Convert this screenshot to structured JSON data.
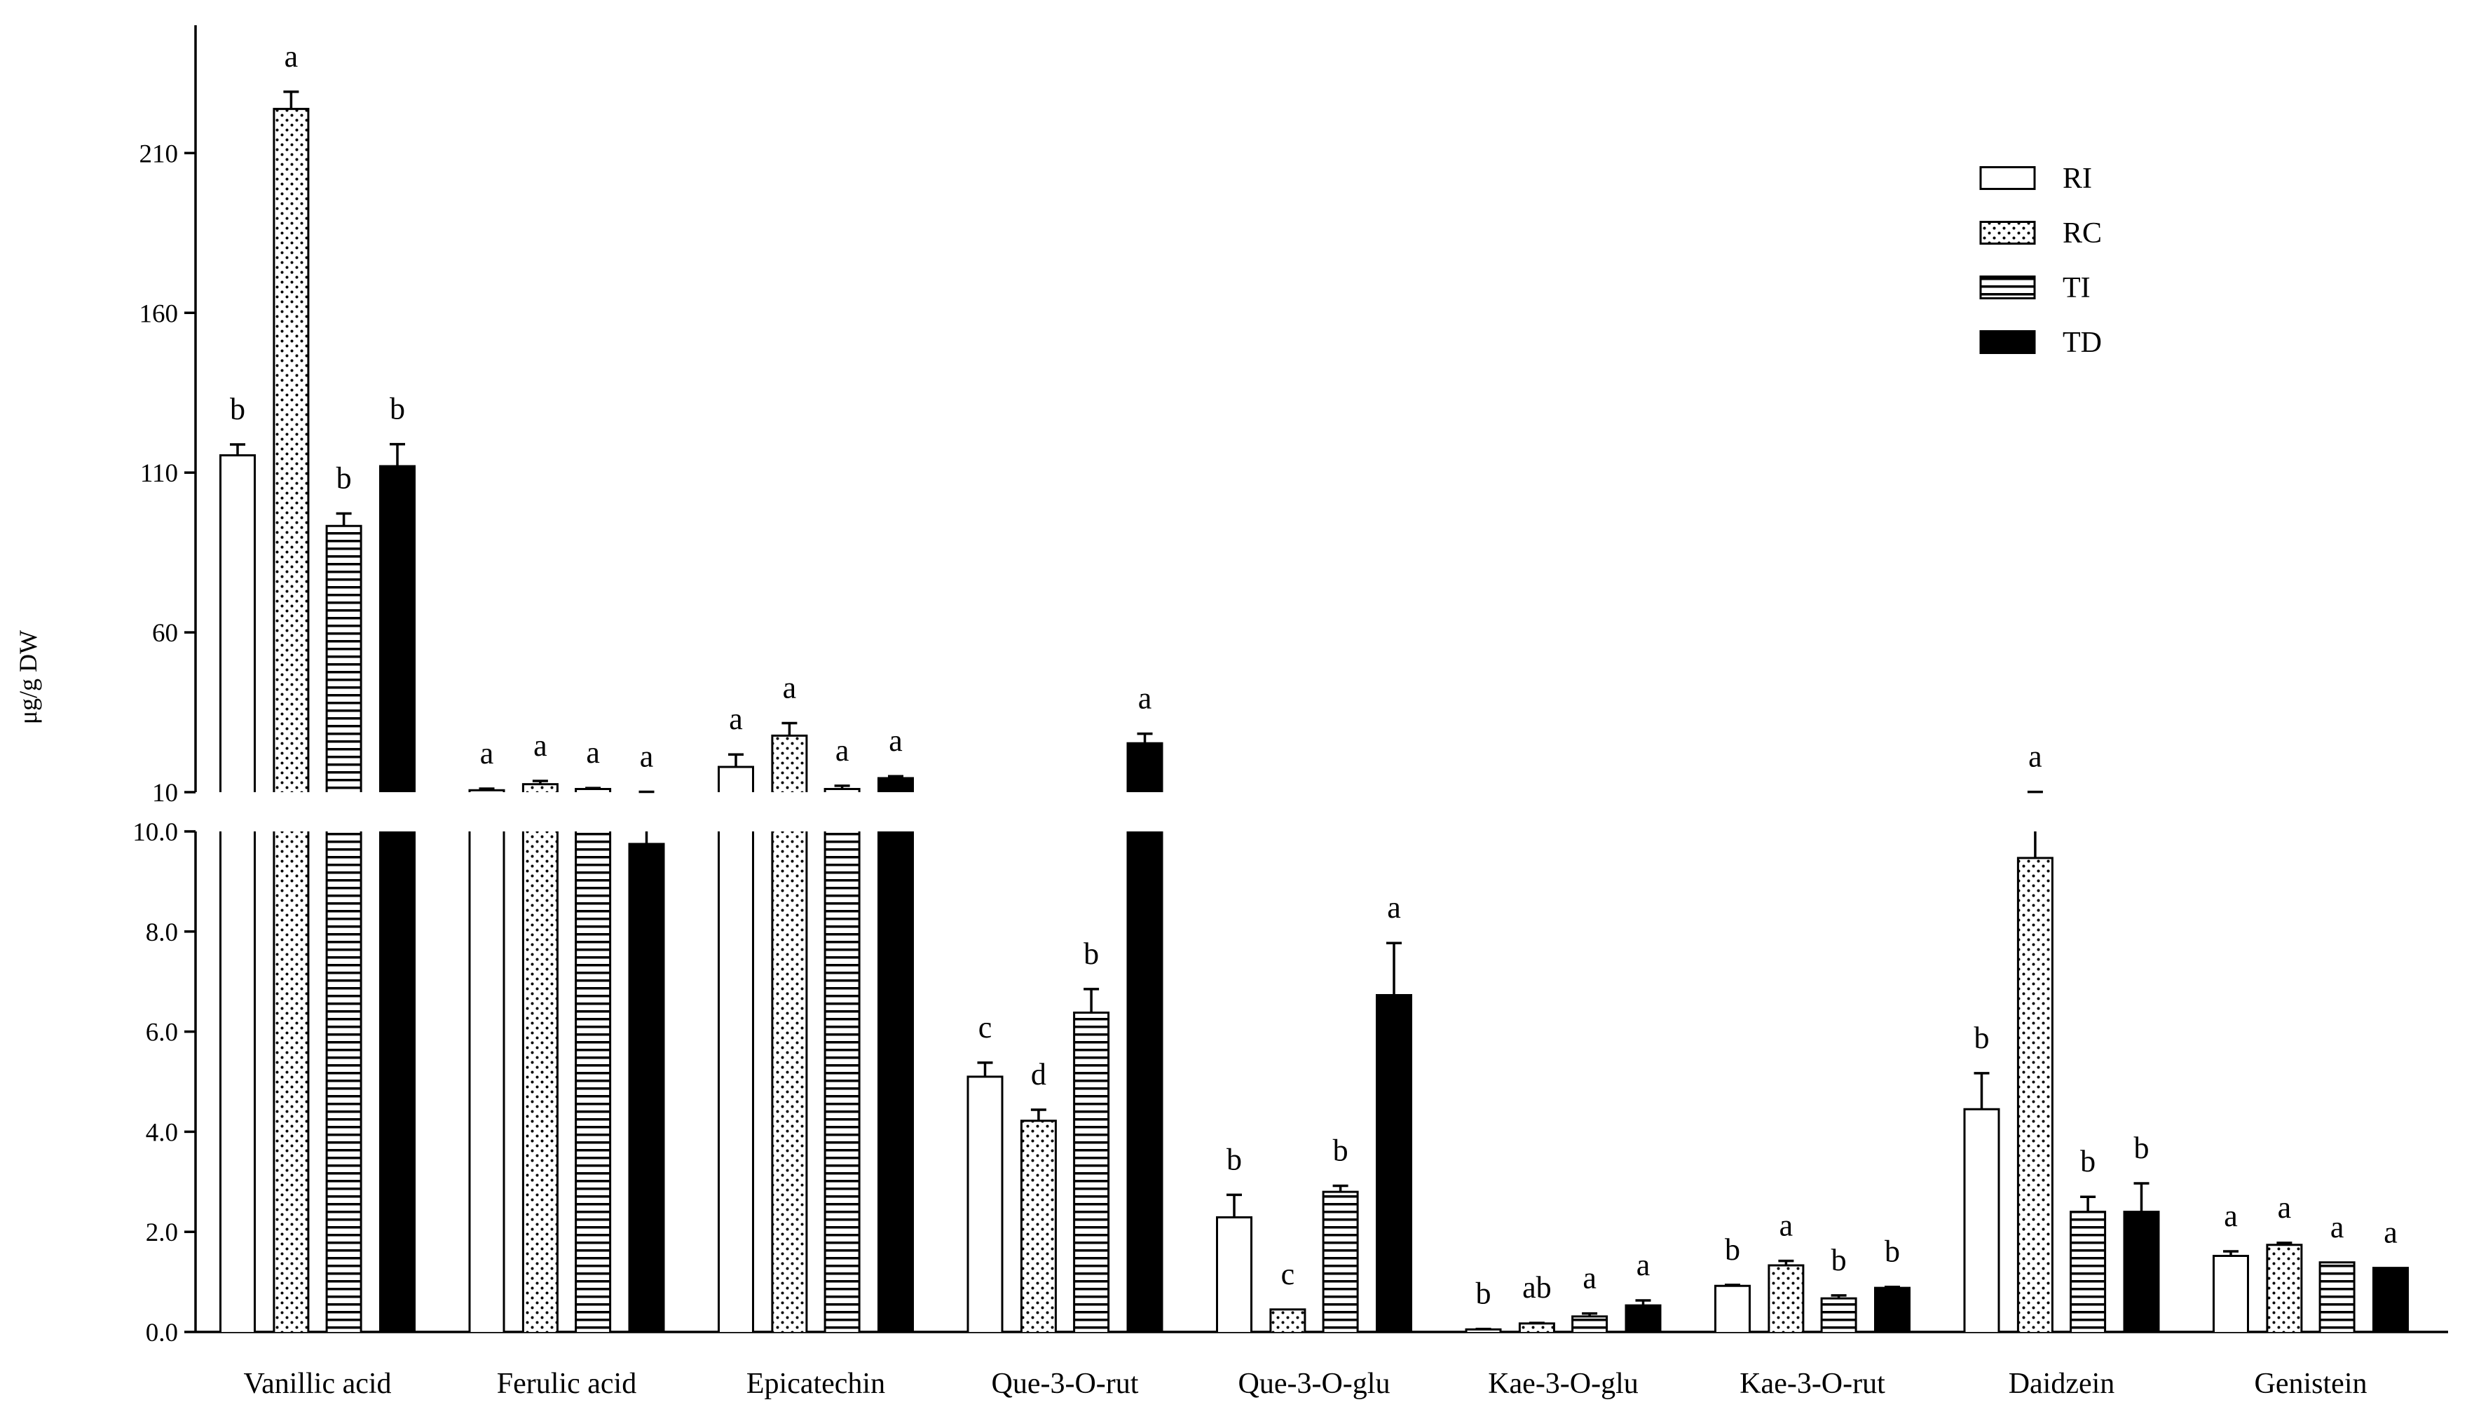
{
  "chart_data": {
    "type": "bar",
    "ylabel": "μg/g DW",
    "categories": [
      "Vanillic acid",
      "Ferulic acid",
      "Epicatechin",
      "Que-3-O-rut",
      "Que-3-O-glu",
      "Kae-3-O-glu",
      "Kae-3-O-rut",
      "Daidzein",
      "Genistein"
    ],
    "axis_break": 10,
    "ylim_lower": [
      0,
      10
    ],
    "ylim_upper": [
      10,
      250
    ],
    "yticks_lower": [
      "0.0",
      "2.0",
      "4.0",
      "6.0",
      "8.0",
      "10.0"
    ],
    "yticks_upper": [
      "10",
      "60",
      "110",
      "160",
      "210"
    ],
    "legend": "top-right",
    "series": [
      {
        "name": "RI",
        "fill": "#ffffff",
        "values": [
          115.4,
          10.6,
          17.9,
          5.1,
          2.29,
          0.05,
          0.92,
          4.45,
          1.52
        ],
        "errors": [
          3.4,
          0.5,
          3.9,
          0.28,
          0.45,
          0.01,
          0.02,
          0.72,
          0.09
        ],
        "letters": [
          "b",
          "a",
          "a",
          "c",
          "b",
          "b",
          "b",
          "b",
          "a"
        ]
      },
      {
        "name": "RC",
        "fill": "#ffffff",
        "values": [
          223.8,
          12.5,
          27.7,
          4.22,
          0.45,
          0.17,
          1.33,
          9.47,
          1.74
        ],
        "errors": [
          5.4,
          1.0,
          3.9,
          0.22,
          0.0,
          0.01,
          0.09,
          0.6,
          0.04
        ],
        "letters": [
          "a",
          "a",
          "a",
          "d",
          "c",
          "ab",
          "a",
          "a",
          "a"
        ]
      },
      {
        "name": "TI",
        "fill": "#ffffff",
        "values": [
          93.3,
          11.0,
          11.0,
          6.38,
          2.8,
          0.31,
          0.67,
          2.4,
          1.39
        ],
        "errors": [
          3.9,
          0.3,
          1.0,
          0.47,
          0.12,
          0.06,
          0.06,
          0.3,
          0.0
        ],
        "letters": [
          "b",
          "a",
          "a",
          "b",
          "b",
          "a",
          "b",
          "b",
          "a"
        ]
      },
      {
        "name": "TD",
        "fill": "#000000",
        "values": [
          112.0,
          9.75,
          14.4,
          25.3,
          6.73,
          0.53,
          0.88,
          2.4,
          1.28
        ],
        "errors": [
          6.9,
          0.35,
          0.6,
          3.0,
          1.04,
          0.1,
          0.02,
          0.57,
          0.0
        ],
        "letters": [
          "b",
          "a",
          "a",
          "a",
          "a",
          "a",
          "b",
          "b",
          "a"
        ]
      }
    ]
  }
}
